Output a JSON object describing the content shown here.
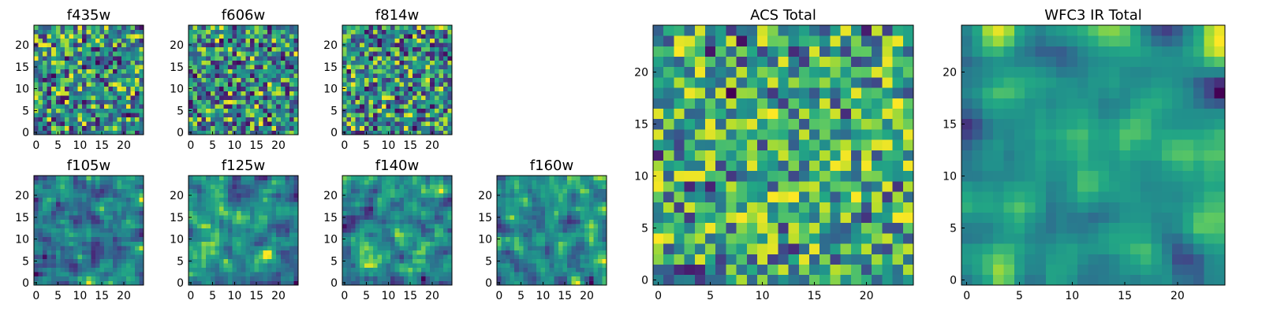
{
  "chart_data": [
    {
      "type": "heatmap",
      "title": "f435w",
      "grid_size": 25,
      "xticks": [
        0,
        5,
        10,
        15,
        20
      ],
      "yticks": [
        0,
        5,
        10,
        15,
        20
      ],
      "xlim": [
        -0.5,
        24.5
      ],
      "ylim": [
        -0.5,
        24.5
      ],
      "colormap": "viridis",
      "seed": 11,
      "smoothing": 0,
      "gamma": 0.75
    },
    {
      "type": "heatmap",
      "title": "f606w",
      "grid_size": 25,
      "xticks": [
        0,
        5,
        10,
        15,
        20
      ],
      "yticks": [
        0,
        5,
        10,
        15,
        20
      ],
      "xlim": [
        -0.5,
        24.5
      ],
      "ylim": [
        -0.5,
        24.5
      ],
      "colormap": "viridis",
      "seed": 23,
      "smoothing": 0,
      "gamma": 0.75
    },
    {
      "type": "heatmap",
      "title": "f814w",
      "grid_size": 25,
      "xticks": [
        0,
        5,
        10,
        15,
        20
      ],
      "yticks": [
        0,
        5,
        10,
        15,
        20
      ],
      "xlim": [
        -0.5,
        24.5
      ],
      "ylim": [
        -0.5,
        24.5
      ],
      "colormap": "viridis",
      "seed": 37,
      "smoothing": 0,
      "gamma": 0.75
    },
    {
      "type": "heatmap",
      "title": "f105w",
      "grid_size": 25,
      "xticks": [
        0,
        5,
        10,
        15,
        20
      ],
      "yticks": [
        0,
        5,
        10,
        15,
        20
      ],
      "xlim": [
        -0.5,
        24.5
      ],
      "ylim": [
        -0.5,
        24.5
      ],
      "colormap": "viridis",
      "seed": 41,
      "smoothing": 1,
      "gamma": 0.8
    },
    {
      "type": "heatmap",
      "title": "f125w",
      "grid_size": 25,
      "xticks": [
        0,
        5,
        10,
        15,
        20
      ],
      "yticks": [
        0,
        5,
        10,
        15,
        20
      ],
      "xlim": [
        -0.5,
        24.5
      ],
      "ylim": [
        -0.5,
        24.5
      ],
      "colormap": "viridis",
      "seed": 53,
      "smoothing": 1,
      "gamma": 0.8
    },
    {
      "type": "heatmap",
      "title": "f140w",
      "grid_size": 25,
      "xticks": [
        0,
        5,
        10,
        15,
        20
      ],
      "yticks": [
        0,
        5,
        10,
        15,
        20
      ],
      "xlim": [
        -0.5,
        24.5
      ],
      "ylim": [
        -0.5,
        24.5
      ],
      "colormap": "viridis",
      "seed": 67,
      "smoothing": 1,
      "gamma": 0.8
    },
    {
      "type": "heatmap",
      "title": "f160w",
      "grid_size": 25,
      "xticks": [
        0,
        5,
        10,
        15,
        20
      ],
      "yticks": [
        0,
        5,
        10,
        15,
        20
      ],
      "xlim": [
        -0.5,
        24.5
      ],
      "ylim": [
        -0.5,
        24.5
      ],
      "colormap": "viridis",
      "seed": 79,
      "smoothing": 1,
      "gamma": 0.8
    },
    {
      "type": "heatmap",
      "title": "ACS Total",
      "grid_size": 25,
      "xticks": [
        0,
        5,
        10,
        15,
        20
      ],
      "yticks": [
        0,
        5,
        10,
        15,
        20
      ],
      "xlim": [
        -0.5,
        24.5
      ],
      "ylim": [
        -0.5,
        24.5
      ],
      "colormap": "viridis",
      "seed": 97,
      "smoothing": 0,
      "gamma": 0.45
    },
    {
      "type": "heatmap",
      "title": "WFC3 IR Total",
      "grid_size": 25,
      "xticks": [
        0,
        5,
        10,
        15,
        20
      ],
      "yticks": [
        0,
        5,
        10,
        15,
        20
      ],
      "xlim": [
        -0.5,
        24.5
      ],
      "ylim": [
        -0.5,
        24.5
      ],
      "colormap": "viridis",
      "seed": 113,
      "smoothing": 2,
      "gamma": 0.55
    }
  ]
}
